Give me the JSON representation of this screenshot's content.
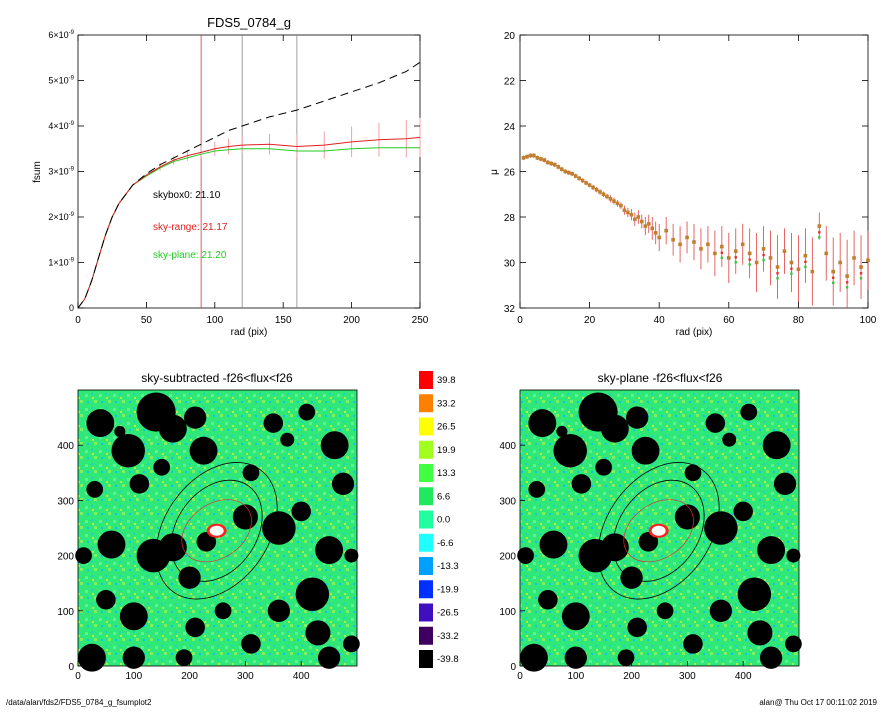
{
  "chart_data": [
    {
      "type": "line",
      "title": "FDS5_0784_g",
      "xlabel": "rad (pix)",
      "ylabel": "fsum",
      "xlim": [
        0,
        250
      ],
      "ylim": [
        0,
        6
      ],
      "x_ticks": [
        "0",
        "50",
        "100",
        "150",
        "200",
        "250"
      ],
      "x_tick_values": [
        0,
        50,
        100,
        150,
        200,
        250
      ],
      "y_ticks": [
        "0",
        "1×10",
        "2×10",
        "3×10",
        "4×10",
        "5×10",
        "6×10"
      ],
      "y_tick_exponent": "-9",
      "y_tick_values": [
        0,
        1,
        2,
        3,
        4,
        5,
        6
      ],
      "vlines": [
        {
          "x": 90,
          "color": "#e03030"
        },
        {
          "x": 120,
          "color": "#888888"
        },
        {
          "x": 160,
          "color": "#888888"
        }
      ],
      "annotations": [
        {
          "text": "skybox0: 21.10",
          "color": "#000000"
        },
        {
          "text": "sky-range: 21.17",
          "color": "#e02020"
        },
        {
          "text": "sky-plane: 21.20",
          "color": "#22cc22"
        }
      ],
      "series": [
        {
          "color": "#000000",
          "style": "dashed",
          "x": [
            0,
            5,
            10,
            15,
            20,
            25,
            30,
            40,
            50,
            60,
            70,
            80,
            90,
            100,
            110,
            120,
            140,
            160,
            180,
            200,
            220,
            240,
            250
          ],
          "y": [
            0,
            0.2,
            0.6,
            1.1,
            1.6,
            2.0,
            2.3,
            2.7,
            2.95,
            3.15,
            3.3,
            3.45,
            3.6,
            3.75,
            3.9,
            4.0,
            4.2,
            4.35,
            4.55,
            4.75,
            4.95,
            5.2,
            5.4
          ]
        },
        {
          "color": "#e02020",
          "style": "solid",
          "x": [
            0,
            5,
            10,
            15,
            20,
            25,
            30,
            40,
            50,
            60,
            70,
            80,
            90,
            100,
            110,
            120,
            140,
            160,
            180,
            200,
            220,
            240,
            250
          ],
          "y": [
            0,
            0.2,
            0.6,
            1.1,
            1.6,
            2.0,
            2.3,
            2.7,
            2.92,
            3.1,
            3.25,
            3.35,
            3.42,
            3.5,
            3.55,
            3.58,
            3.6,
            3.55,
            3.58,
            3.65,
            3.7,
            3.72,
            3.75
          ]
        },
        {
          "color": "#22cc22",
          "style": "solid",
          "x": [
            0,
            5,
            10,
            15,
            20,
            25,
            30,
            40,
            50,
            60,
            70,
            80,
            90,
            100,
            110,
            120,
            140,
            160,
            180,
            200,
            220,
            240,
            250
          ],
          "y": [
            0,
            0.2,
            0.6,
            1.1,
            1.6,
            2.0,
            2.3,
            2.7,
            2.9,
            3.08,
            3.22,
            3.3,
            3.38,
            3.45,
            3.48,
            3.5,
            3.5,
            3.45,
            3.45,
            3.5,
            3.52,
            3.52,
            3.52
          ]
        }
      ]
    },
    {
      "type": "scatter",
      "title": "",
      "xlabel": "rad (pix)",
      "ylabel": "μ",
      "xlim": [
        0,
        100
      ],
      "ylim": [
        32,
        20
      ],
      "x_ticks": [
        "0",
        "20",
        "40",
        "60",
        "80",
        "100"
      ],
      "x_tick_values": [
        0,
        20,
        40,
        60,
        80,
        100
      ],
      "y_ticks": [
        "20",
        "22",
        "24",
        "26",
        "28",
        "30",
        "32"
      ],
      "y_tick_values": [
        20,
        22,
        24,
        26,
        28,
        30,
        32
      ],
      "x": [
        1,
        2,
        3,
        4,
        5,
        6,
        7,
        8,
        9,
        10,
        11,
        12,
        13,
        14,
        15,
        16,
        17,
        18,
        19,
        20,
        21,
        22,
        23,
        24,
        25,
        26,
        27,
        28,
        29,
        30,
        31,
        32,
        33,
        34,
        35,
        36,
        37,
        38,
        39,
        40,
        42,
        44,
        46,
        48,
        50,
        52,
        54,
        56,
        58,
        60,
        62,
        64,
        66,
        68,
        70,
        72,
        74,
        76,
        78,
        80,
        82,
        84,
        86,
        88,
        90,
        92,
        94,
        96,
        98,
        100
      ],
      "y": [
        25.4,
        25.35,
        25.3,
        25.3,
        25.4,
        25.45,
        25.5,
        25.6,
        25.65,
        25.7,
        25.8,
        25.9,
        26.0,
        26.05,
        26.1,
        26.2,
        26.3,
        26.4,
        26.5,
        26.6,
        26.7,
        26.8,
        26.9,
        27.0,
        27.1,
        27.2,
        27.3,
        27.4,
        27.5,
        27.7,
        27.8,
        27.9,
        28.1,
        28.0,
        28.2,
        28.4,
        28.3,
        28.5,
        28.7,
        28.9,
        28.6,
        29.0,
        29.2,
        28.9,
        29.1,
        29.4,
        29.2,
        29.6,
        29.3,
        29.8,
        29.5,
        29.2,
        29.6,
        30.0,
        29.4,
        29.8,
        30.2,
        29.5,
        30.0,
        30.3,
        29.7,
        30.4,
        28.4,
        29.6,
        30.4,
        30.0,
        30.6,
        29.8,
        30.2,
        29.9
      ],
      "err": [
        0.1,
        0.1,
        0.1,
        0.1,
        0.1,
        0.1,
        0.1,
        0.1,
        0.1,
        0.1,
        0.1,
        0.1,
        0.1,
        0.1,
        0.1,
        0.1,
        0.1,
        0.1,
        0.1,
        0.1,
        0.12,
        0.12,
        0.12,
        0.12,
        0.12,
        0.15,
        0.15,
        0.15,
        0.15,
        0.2,
        0.2,
        0.25,
        0.3,
        0.3,
        0.3,
        0.4,
        0.4,
        0.5,
        0.5,
        0.6,
        0.6,
        0.7,
        0.8,
        0.7,
        0.8,
        0.9,
        0.8,
        1.0,
        0.9,
        1.1,
        1.0,
        0.9,
        1.1,
        1.3,
        1.0,
        1.2,
        1.4,
        1.0,
        1.3,
        1.5,
        1.2,
        1.5,
        0.6,
        1.2,
        1.5,
        1.3,
        1.6,
        1.2,
        1.4,
        1.3
      ]
    },
    {
      "type": "heatmap",
      "title": "sky-subtracted -f26<flux<f26",
      "xlim": [
        0,
        500
      ],
      "ylim": [
        0,
        500
      ],
      "x_ticks": [
        "0",
        "100",
        "200",
        "300",
        "400"
      ],
      "x_tick_values": [
        0,
        100,
        200,
        300,
        400
      ],
      "y_ticks": [
        "0",
        "100",
        "200",
        "300",
        "400"
      ],
      "y_tick_values": [
        0,
        100,
        200,
        300,
        400
      ]
    },
    {
      "type": "heatmap",
      "title": "sky-plane -f26<flux<f26",
      "xlim": [
        0,
        500
      ],
      "ylim": [
        0,
        500
      ],
      "x_ticks": [
        "0",
        "100",
        "200",
        "300",
        "400"
      ],
      "x_tick_values": [
        0,
        100,
        200,
        300,
        400
      ],
      "y_ticks": [
        "0",
        "100",
        "200",
        "300",
        "400"
      ],
      "y_tick_values": [
        0,
        100,
        200,
        300,
        400
      ]
    }
  ],
  "colorbar": {
    "labels": [
      "39.8",
      "33.2",
      "26.5",
      "19.9",
      "13.3",
      "6.6",
      "0.0",
      "-6.6",
      "-13.3",
      "-19.9",
      "-26.5",
      "-33.2",
      "-39.8"
    ],
    "colors": [
      "#ff0000",
      "#ff8000",
      "#ffff00",
      "#a0ff20",
      "#40ff40",
      "#20e860",
      "#20ffa0",
      "#20ffff",
      "#00a0ff",
      "#0030ff",
      "#4010c0",
      "#400060",
      "#000000"
    ]
  },
  "footer": {
    "left": "/data/alan/fds2/FDS5_0784_g_fsumplot2",
    "right": "alan@  Thu Oct 17 00:11:02 2019"
  }
}
